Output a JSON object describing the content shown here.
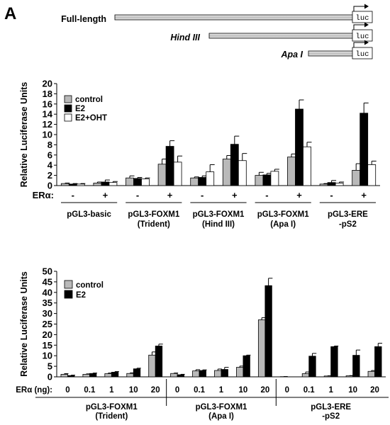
{
  "panel_label": "A",
  "constructs": [
    {
      "name": "Full-length",
      "italic": false,
      "luc": "luc"
    },
    {
      "name": "Hind III",
      "italic": true,
      "luc": "luc"
    },
    {
      "name": "Apa I",
      "italic": true,
      "luc": "luc"
    }
  ],
  "chart_data": [
    {
      "type": "bar",
      "ylabel": "Relative Luciferase Units",
      "ylim": [
        0,
        20
      ],
      "yticks": [
        0,
        2,
        4,
        6,
        8,
        10,
        12,
        14,
        16,
        18,
        20
      ],
      "legend_position": "top-left",
      "row_label": "ERα:",
      "row_values": [
        "-",
        "+",
        "-",
        "+",
        "-",
        "+",
        "-",
        "+",
        "-",
        "+"
      ],
      "categories": [
        "pGL3-basic -",
        "pGL3-basic +",
        "pGL3-FOXM1 (Trident) -",
        "pGL3-FOXM1 (Trident) +",
        "pGL3-FOXM1 (Hind III) -",
        "pGL3-FOXM1 (Hind III) +",
        "pGL3-FOXM1 (Apa I) -",
        "pGL3-FOXM1 (Apa I) +",
        "pGL3-ERE -pS2 -",
        "pGL3-ERE -pS2 +"
      ],
      "groups": [
        {
          "line1": "pGL3-basic",
          "line2": ""
        },
        {
          "line1": "pGL3-FOXM1",
          "line2": "(Trident)"
        },
        {
          "line1": "pGL3-FOXM1",
          "line2": "(Hind III)"
        },
        {
          "line1": "pGL3-FOXM1",
          "line2": "(Apa I)"
        },
        {
          "line1": "pGL3-ERE",
          "line2": "-pS2"
        }
      ],
      "series": [
        {
          "name": "control",
          "color": "#b9b9b9",
          "values": [
            0.4,
            0.5,
            1.5,
            4.2,
            1.5,
            5.2,
            2.0,
            5.6,
            0.3,
            3.0
          ],
          "errors": [
            0.1,
            0.2,
            0.4,
            1.0,
            0.2,
            0.7,
            0.6,
            0.6,
            0.1,
            1.3
          ]
        },
        {
          "name": "E2",
          "color": "#000000",
          "values": [
            0.3,
            0.7,
            1.4,
            7.7,
            1.6,
            8.1,
            2.1,
            15.0,
            0.6,
            14.2
          ],
          "errors": [
            0.1,
            0.4,
            0.2,
            1.1,
            0.3,
            1.6,
            0.3,
            1.8,
            0.4,
            2.0
          ]
        },
        {
          "name": "E2+OHT",
          "color": "#ffffff",
          "values": [
            0.3,
            0.6,
            1.3,
            4.6,
            2.7,
            4.9,
            2.8,
            7.6,
            0.5,
            4.1
          ],
          "errors": [
            0.1,
            0.2,
            0.2,
            1.2,
            1.4,
            1.4,
            0.4,
            0.9,
            0.2,
            0.7
          ]
        }
      ]
    },
    {
      "type": "bar",
      "ylabel": "Relative Luciferase Units",
      "ylim": [
        0,
        50
      ],
      "yticks": [
        0,
        5,
        10,
        15,
        20,
        25,
        30,
        35,
        40,
        45,
        50
      ],
      "legend_position": "top-left",
      "row_label": "ERα (ng):",
      "row_values": [
        "0",
        "0.1",
        "1",
        "10",
        "20",
        "0",
        "0.1",
        "1",
        "10",
        "20",
        "0",
        "0.1",
        "1",
        "10",
        "20"
      ],
      "categories": [
        "pGL3-FOXM1 (Trident) 0",
        "pGL3-FOXM1 (Trident) 0.1",
        "pGL3-FOXM1 (Trident) 1",
        "pGL3-FOXM1 (Trident) 10",
        "pGL3-FOXM1 (Trident) 20",
        "pGL3-FOXM1 (Apa I) 0",
        "pGL3-FOXM1 (Apa I) 0.1",
        "pGL3-FOXM1 (Apa I) 1",
        "pGL3-FOXM1 (Apa I) 10",
        "pGL3-FOXM1 (Apa I) 20",
        "pGL3-ERE -pS2 0",
        "pGL3-ERE -pS2 0.1",
        "pGL3-ERE -pS2 1",
        "pGL3-ERE -pS2 10",
        "pGL3-ERE -pS2 20"
      ],
      "groups": [
        {
          "line1": "pGL3-FOXM1",
          "line2": "(Trident)"
        },
        {
          "line1": "pGL3-FOXM1",
          "line2": "(Apa I)"
        },
        {
          "line1": "pGL3-ERE",
          "line2": "-pS2"
        }
      ],
      "series": [
        {
          "name": "control",
          "color": "#b9b9b9",
          "values": [
            1.2,
            1.2,
            1.5,
            1.6,
            10.3,
            1.6,
            2.8,
            3.0,
            4.5,
            27.0,
            0.1,
            1.5,
            0.4,
            0.5,
            2.6
          ],
          "errors": [
            0.3,
            0.2,
            0.3,
            0.3,
            1.5,
            0.2,
            0.6,
            0.7,
            0.6,
            1.0,
            0.05,
            0.8,
            0.1,
            0.1,
            0.4
          ]
        },
        {
          "name": "E2",
          "color": "#000000",
          "values": [
            0.6,
            1.6,
            2.2,
            3.8,
            14.6,
            1.0,
            3.0,
            3.5,
            10.0,
            43.2,
            0.0,
            9.8,
            14.3,
            10.2,
            14.3
          ],
          "errors": [
            0.2,
            0.2,
            0.3,
            0.3,
            0.9,
            0.2,
            0.3,
            1.0,
            0.3,
            3.5,
            0.0,
            1.3,
            0.3,
            2.5,
            1.6
          ]
        }
      ]
    }
  ]
}
